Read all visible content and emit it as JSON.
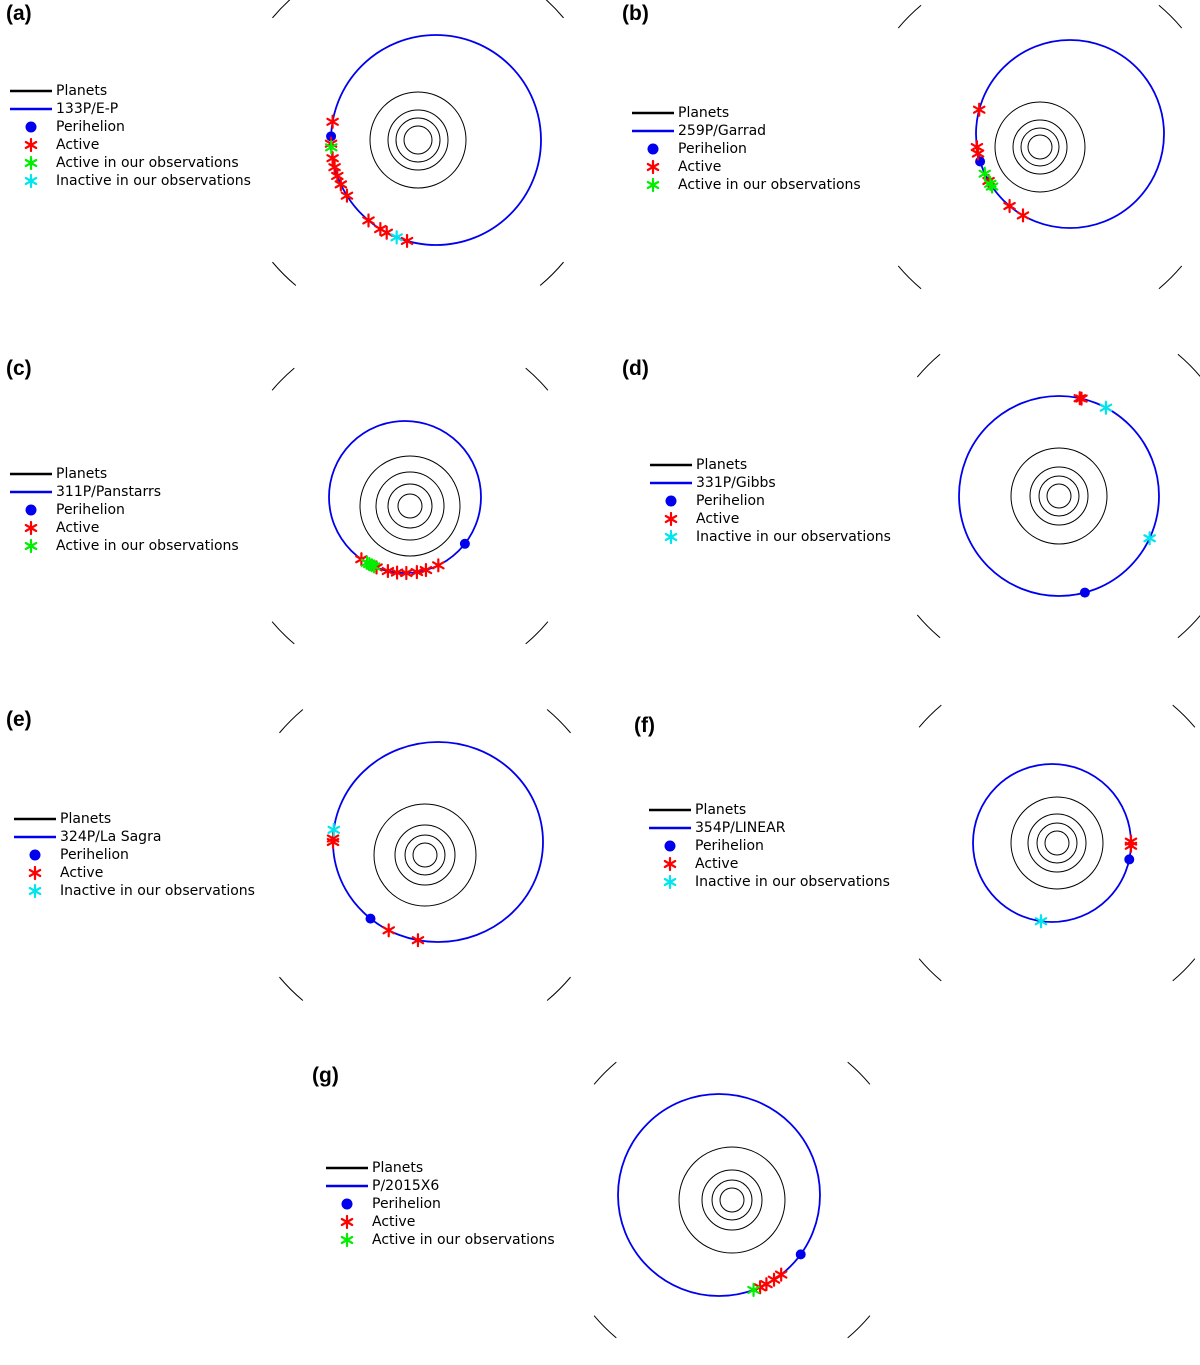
{
  "legend_labels": {
    "planets": "Planets",
    "perihelion": "Perihelion",
    "active": "Active",
    "active_obs": "Active in our observations",
    "inactive_obs": "Inactive in our observations"
  },
  "colors": {
    "planet": "#000000",
    "orbit": "#0000ee",
    "perihelion": "#0000ee",
    "active": "#ff0000",
    "active_obs": "#00ee00",
    "inactive_obs": "#00e5ee"
  },
  "panels": [
    {
      "id": "a",
      "label": "(a)",
      "comet": "133P/E-P",
      "legend": [
        "planets",
        "comet",
        "perihelion",
        "active",
        "active_obs",
        "inactive_obs"
      ],
      "perihelion_deg": [
        182
      ],
      "active_deg": [
        190,
        178,
        170,
        165,
        160,
        155,
        148,
        130,
        122,
        118,
        106
      ],
      "active_obs_deg": [
        176
      ],
      "inactive_obs_deg": [
        112
      ]
    },
    {
      "id": "b",
      "label": "(b)",
      "comet": "259P/Garrad",
      "legend": [
        "planets",
        "comet",
        "perihelion",
        "active",
        "active_obs"
      ],
      "perihelion_deg": [
        163
      ],
      "active_deg": [
        195,
        172,
        168,
        150,
        130,
        120
      ],
      "active_obs_deg": [
        155,
        148,
        146
      ],
      "inactive_obs_deg": []
    },
    {
      "id": "c",
      "label": "(c)",
      "comet": "311P/Panstarrs",
      "legend": [
        "planets",
        "comet",
        "perihelion",
        "active",
        "active_obs"
      ],
      "perihelion_deg": [
        38
      ],
      "active_deg": [
        125,
        112,
        103,
        96,
        89,
        81,
        74,
        64
      ],
      "active_obs_deg": [
        120,
        118,
        116,
        114
      ],
      "inactive_obs_deg": []
    },
    {
      "id": "d",
      "label": "(d)",
      "comet": "331P/Gibbs",
      "legend": [
        "planets",
        "comet",
        "perihelion",
        "active",
        "inactive_obs"
      ],
      "perihelion_deg": [
        75
      ],
      "active_deg": [
        282,
        283
      ],
      "active_obs_deg": [],
      "inactive_obs_deg": [
        298,
        25
      ]
    },
    {
      "id": "e",
      "label": "(e)",
      "comet": "324P/La Sagra",
      "legend": [
        "planets",
        "comet",
        "perihelion",
        "active",
        "inactive_obs"
      ],
      "perihelion_deg": [
        130
      ],
      "active_deg": [
        182,
        180,
        118,
        101
      ],
      "active_obs_deg": [],
      "inactive_obs_deg": [
        187
      ]
    },
    {
      "id": "f",
      "label": "(f)",
      "comet": "354P/LINEAR",
      "legend": [
        "planets",
        "comet",
        "perihelion",
        "active",
        "inactive_obs"
      ],
      "perihelion_deg": [
        12
      ],
      "active_deg": [
        2,
        -1
      ],
      "active_obs_deg": [],
      "inactive_obs_deg": [
        98
      ]
    },
    {
      "id": "g",
      "label": "(g)",
      "comet": "P/2015X6",
      "legend": [
        "planets",
        "comet",
        "perihelion",
        "active",
        "active_obs"
      ],
      "perihelion_deg": [
        36
      ],
      "active_deg": [
        52,
        57,
        62,
        66
      ],
      "active_obs_deg": [
        70
      ],
      "inactive_obs_deg": []
    }
  ]
}
